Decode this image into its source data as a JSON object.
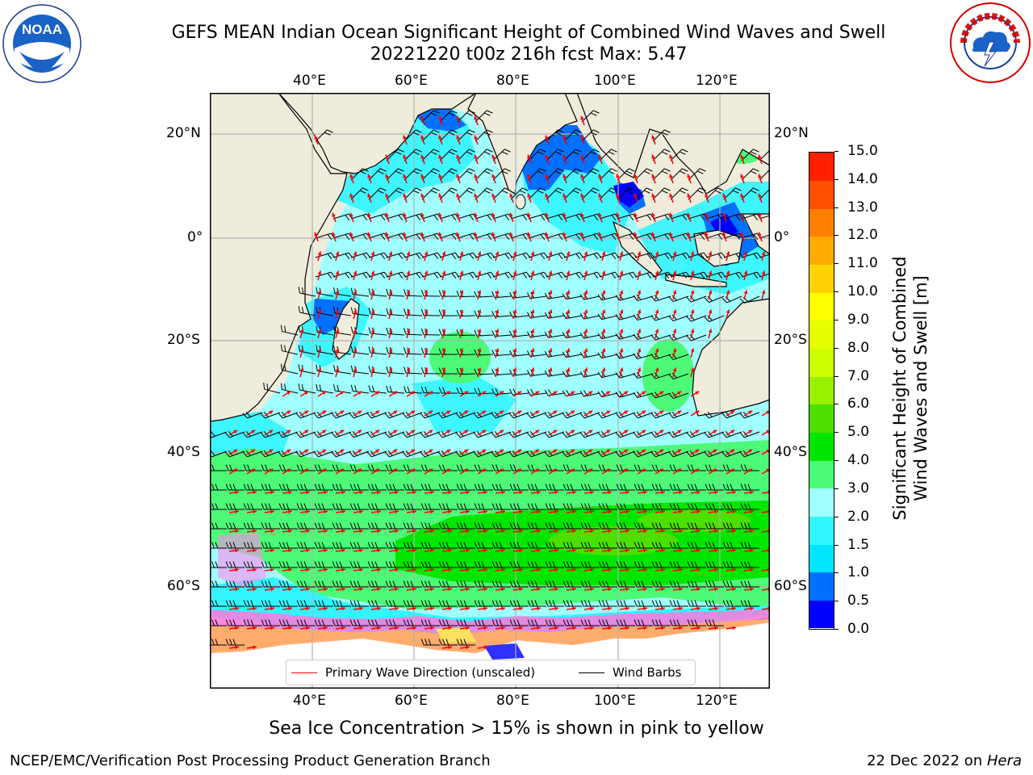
{
  "header": {
    "title_line1": "GEFS MEAN Indian Ocean Significant Height of Combined Wind Waves and Swell",
    "title_line2": "20221220 t00z 216h fcst   Max: 5.47"
  },
  "logos": {
    "left": {
      "name": "NOAA",
      "text": "NOAA",
      "ring_text": "NATIONAL OCEANIC AND ATMOSPHERIC ADMINISTRATION · U.S. DEPARTMENT OF COMMERCE"
    },
    "right": {
      "name": "National Weather Service",
      "ring_text": "NATIONAL WEATHER SERVICE"
    }
  },
  "map": {
    "lon_ticks": [
      "40°E",
      "60°E",
      "80°E",
      "100°E",
      "120°E"
    ],
    "lat_ticks_left": [
      "20°N",
      "0°",
      "20°S",
      "40°S",
      "60°S"
    ],
    "lat_ticks_right": [
      "20°N",
      "0°",
      "20°S",
      "40°S",
      "60°S"
    ],
    "colors": {
      "land": "#efecdc",
      "grid": "#b0b0b0",
      "wave_arrow": "#ff0000",
      "wind_barb": "#000000"
    },
    "legend": {
      "primary_wave": {
        "label": "Primary Wave Direction (unscaled)",
        "color": "#ff0000"
      },
      "wind_barbs": {
        "label": "Wind Barbs",
        "color": "#000000"
      }
    }
  },
  "colorbar": {
    "label_line1": "Significant Height of Combined",
    "label_line2": "Wind Waves and Swell [m]",
    "levels": [
      "0.0",
      "0.5",
      "1.0",
      "1.5",
      "2.0",
      "3.0",
      "4.0",
      "5.0",
      "6.0",
      "7.0",
      "8.0",
      "9.0",
      "10.0",
      "11.0",
      "12.0",
      "13.0",
      "14.0",
      "15.0"
    ],
    "colors": [
      "#0000ff",
      "#0070ff",
      "#00e6ff",
      "#33f5ff",
      "#a0ffff",
      "#4dfa78",
      "#00e600",
      "#4ddf00",
      "#99f000",
      "#ccff00",
      "#e6ff00",
      "#ffff00",
      "#ffd200",
      "#ffaa00",
      "#ff8000",
      "#ff5000",
      "#ff2000"
    ]
  },
  "footer": {
    "note": "Sea Ice Concentration > 15% is shown in pink to yellow",
    "credit": "NCEP/EMC/Verification Post Processing Product Generation Branch",
    "date_prefix": "22 Dec 2022 on ",
    "machine": "Hera"
  }
}
